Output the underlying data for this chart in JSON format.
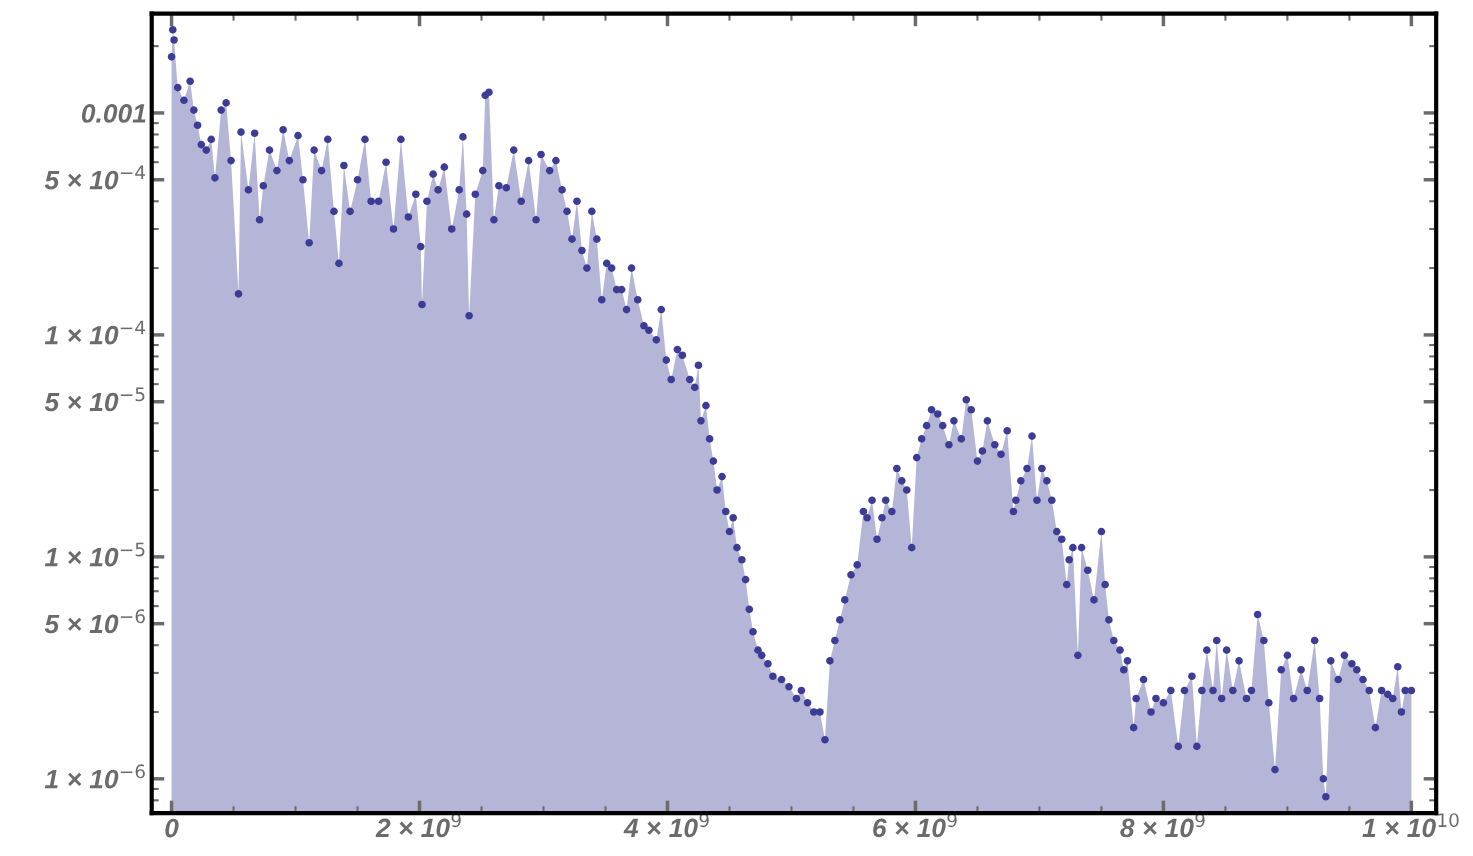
{
  "chart_data": {
    "type": "area",
    "marker": "circle",
    "log": "y",
    "xlim": [
      -160000000.0,
      10200000000.0
    ],
    "ylim": [
      7e-07,
      0.0028
    ],
    "xticks": [
      {
        "value": 0,
        "label": "0"
      },
      {
        "value": 2000000000.0,
        "label": "2 × 10$^{9}$"
      },
      {
        "value": 4000000000.0,
        "label": "4 × 10$^{9}$"
      },
      {
        "value": 6000000000.0,
        "label": "6 × 10$^{9}$"
      },
      {
        "value": 8000000000.0,
        "label": "8 × 10$^{9}$"
      },
      {
        "value": 10000000000.0,
        "label": "1 × 10$^{10}$"
      }
    ],
    "yticks": [
      {
        "value": 1e-06,
        "label": "1 × 10$^{−6}$"
      },
      {
        "value": 5e-06,
        "label": "5 × 10$^{−6}$"
      },
      {
        "value": 1e-05,
        "label": "1 × 10$^{−5}$"
      },
      {
        "value": 5e-05,
        "label": "5 × 10$^{−5}$"
      },
      {
        "value": 0.0001,
        "label": "1 × 10$^{−4}$"
      },
      {
        "value": 0.0005,
        "label": "5 × 10$^{−4}$"
      },
      {
        "value": 0.001,
        "label": "0.001"
      }
    ],
    "series": [
      {
        "color": "#3c3c96",
        "x": [
          0,
          10000000.0,
          20000000.0,
          50000000.0,
          100000000.0,
          150000000.0,
          180000000.0,
          210000000.0,
          240000000.0,
          280000000.0,
          320000000.0,
          350000000.0,
          400000000.0,
          440000000.0,
          480000000.0,
          540000000.0,
          560000000.0,
          620000000.0,
          670000000.0,
          710000000.0,
          740000000.0,
          790000000.0,
          850000000.0,
          900000000.0,
          950000000.0,
          1020000000.0,
          1060000000.0,
          1110000000.0,
          1150000000.0,
          1210000000.0,
          1260000000.0,
          1310000000.0,
          1350000000.0,
          1390000000.0,
          1440000000.0,
          1500000000.0,
          1560000000.0,
          1610000000.0,
          1670000000.0,
          1730000000.0,
          1790000000.0,
          1850000000.0,
          1910000000.0,
          1970000000.0,
          2010000000.0,
          2020000000.0,
          2060000000.0,
          2110000000.0,
          2150000000.0,
          2200000000.0,
          2260000000.0,
          2320000000.0,
          2350000000.0,
          2380000000.0,
          2400000000.0,
          2450000000.0,
          2510000000.0,
          2530000000.0,
          2560000000.0,
          2600000000.0,
          2640000000.0,
          2700000000.0,
          2760000000.0,
          2820000000.0,
          2880000000.0,
          2940000000.0,
          2980000000.0,
          3050000000.0,
          3100000000.0,
          3150000000.0,
          3190000000.0,
          3230000000.0,
          3270000000.0,
          3310000000.0,
          3350000000.0,
          3390000000.0,
          3430000000.0,
          3470000000.0,
          3510000000.0,
          3550000000.0,
          3590000000.0,
          3630000000.0,
          3670000000.0,
          3710000000.0,
          3760000000.0,
          3810000000.0,
          3850000000.0,
          3910000000.0,
          3950000000.0,
          3990000000.0,
          4030000000.0,
          4080000000.0,
          4120000000.0,
          4180000000.0,
          4220000000.0,
          4250000000.0,
          4270000000.0,
          4310000000.0,
          4340000000.0,
          4370000000.0,
          4400000000.0,
          4440000000.0,
          4470000000.0,
          4500000000.0,
          4530000000.0,
          4560000000.0,
          4600000000.0,
          4630000000.0,
          4660000000.0,
          4690000000.0,
          4730000000.0,
          4760000000.0,
          4810000000.0,
          4850000000.0,
          4920000000.0,
          4980000000.0,
          5040000000.0,
          5080000000.0,
          5130000000.0,
          5180000000.0,
          5230000000.0,
          5270000000.0,
          5310000000.0,
          5350000000.0,
          5390000000.0,
          5430000000.0,
          5480000000.0,
          5530000000.0,
          5580000000.0,
          5610000000.0,
          5650000000.0,
          5690000000.0,
          5730000000.0,
          5760000000.0,
          5810000000.0,
          5850000000.0,
          5890000000.0,
          5930000000.0,
          5970000000.0,
          6010000000.0,
          6050000000.0,
          6090000000.0,
          6130000000.0,
          6180000000.0,
          6220000000.0,
          6270000000.0,
          6310000000.0,
          6370000000.0,
          6410000000.0,
          6450000000.0,
          6500000000.0,
          6540000000.0,
          6580000000.0,
          6640000000.0,
          6690000000.0,
          6740000000.0,
          6790000000.0,
          6810000000.0,
          6850000000.0,
          6900000000.0,
          6940000000.0,
          6980000000.0,
          7020000000.0,
          7060000000.0,
          7100000000.0,
          7140000000.0,
          7180000000.0,
          7220000000.0,
          7240000000.0,
          7270000000.0,
          7310000000.0,
          7340000000.0,
          7390000000.0,
          7440000000.0,
          7500000000.0,
          7530000000.0,
          7560000000.0,
          7600000000.0,
          7650000000.0,
          7680000000.0,
          7710000000.0,
          7760000000.0,
          7780000000.0,
          7840000000.0,
          7900000000.0,
          7940000000.0,
          8000000000.0,
          8060000000.0,
          8120000000.0,
          8170000000.0,
          8230000000.0,
          8270000000.0,
          8310000000.0,
          8350000000.0,
          8400000000.0,
          8430000000.0,
          8470000000.0,
          8510000000.0,
          8560000000.0,
          8610000000.0,
          8670000000.0,
          8710000000.0,
          8760000000.0,
          8810000000.0,
          8850000000.0,
          8900000000.0,
          8950000000.0,
          9000000000.0,
          9050000000.0,
          9110000000.0,
          9160000000.0,
          9220000000.0,
          9260000000.0,
          9290000000.0,
          9310000000.0,
          9350000000.0,
          9410000000.0,
          9460000000.0,
          9520000000.0,
          9560000000.0,
          9610000000.0,
          9660000000.0,
          9710000000.0,
          9760000000.0,
          9810000000.0,
          9850000000.0,
          9890000000.0,
          9920000000.0,
          9950000000.0,
          10000000000.0
        ],
        "values": [
          0.00179,
          0.00237,
          0.00213,
          0.0013,
          0.00114,
          0.00139,
          0.00103,
          0.00088,
          0.00072,
          0.00068,
          0.00076,
          0.00051,
          0.00103,
          0.00111,
          0.00061,
          0.000153,
          0.00082,
          0.00045,
          0.00081,
          0.00033,
          0.00047,
          0.00068,
          0.00055,
          0.00084,
          0.00061,
          0.00079,
          0.0005,
          0.00026,
          0.00068,
          0.00055,
          0.00076,
          0.00036,
          0.00021,
          0.00058,
          0.00036,
          0.0005,
          0.00076,
          0.0004,
          0.0004,
          0.0006,
          0.0003,
          0.00076,
          0.00034,
          0.00043,
          0.00025,
          0.000137,
          0.0004,
          0.00053,
          0.00045,
          0.00057,
          0.0003,
          0.00045,
          0.00078,
          0.00035,
          0.000122,
          0.00043,
          0.00055,
          0.0012,
          0.00124,
          0.00033,
          0.00047,
          0.00046,
          0.00068,
          0.0004,
          0.00061,
          0.00033,
          0.00065,
          0.00055,
          0.00061,
          0.00045,
          0.00036,
          0.00027,
          0.0004,
          0.00024,
          0.0002,
          0.00036,
          0.00027,
          0.000144,
          0.00021,
          0.0002,
          0.00016,
          0.00016,
          0.00013,
          0.0002,
          0.000144,
          0.00011,
          0.000105,
          9.5e-05,
          0.00013,
          7.7e-05,
          6.3e-05,
          8.6e-05,
          8.1e-05,
          6.3e-05,
          5.8e-05,
          7.3e-05,
          4.1e-05,
          4.8e-05,
          3.4e-05,
          2.7e-05,
          2e-05,
          2.3e-05,
          1.6e-05,
          1.3e-05,
          1.5e-05,
          1.1e-05,
          9.7e-06,
          7.9e-06,
          5.8e-06,
          4.6e-06,
          3.8e-06,
          3.6e-06,
          3.3e-06,
          2.9e-06,
          2.8e-06,
          2.6e-06,
          2.3e-06,
          2.5e-06,
          2.2e-06,
          2e-06,
          2e-06,
          1.5e-06,
          3.4e-06,
          4.2e-06,
          5.2e-06,
          6.4e-06,
          8.3e-06,
          9.2e-06,
          1.6e-05,
          1.5e-05,
          1.8e-05,
          1.2e-05,
          1.5e-05,
          1.8e-05,
          1.6e-05,
          2.5e-05,
          2.2e-05,
          2e-05,
          1.1e-05,
          2.8e-05,
          3.4e-05,
          3.9e-05,
          4.6e-05,
          4.4e-05,
          3.9e-05,
          3.2e-05,
          4.1e-05,
          3.4e-05,
          5.1e-05,
          4.6e-05,
          2.7e-05,
          3e-05,
          4.1e-05,
          3.2e-05,
          2.9e-05,
          3.7e-05,
          1.6e-05,
          1.8e-05,
          2.2e-05,
          2.5e-05,
          3.5e-05,
          1.8e-05,
          2.5e-05,
          2.2e-05,
          1.8e-05,
          1.3e-05,
          1.2e-05,
          7.5e-06,
          9.7e-06,
          1.1e-05,
          3.6e-06,
          1.1e-05,
          8.7e-06,
          6.4e-06,
          1.3e-05,
          7.5e-06,
          5.2e-06,
          4.2e-06,
          3.8e-06,
          3.1e-06,
          3.4e-06,
          1.7e-06,
          2.3e-06,
          2.8e-06,
          2e-06,
          2.3e-06,
          2.2e-06,
          2.5e-06,
          1.4e-06,
          2.5e-06,
          2.9e-06,
          1.4e-06,
          2.5e-06,
          3.8e-06,
          2.5e-06,
          4.2e-06,
          2.3e-06,
          3.8e-06,
          2.5e-06,
          3.4e-06,
          2.3e-06,
          2.5e-06,
          5.5e-06,
          4.2e-06,
          2.2e-06,
          1.1e-06,
          3.1e-06,
          3.6e-06,
          2.3e-06,
          3.1e-06,
          2.5e-06,
          4.2e-06,
          2.3e-06,
          1e-06,
          8.3e-07,
          3.4e-06,
          2.8e-06,
          3.6e-06,
          3.3e-06,
          3.1e-06,
          2.8e-06,
          2.5e-06,
          1.7e-06,
          2.5e-06,
          2.4e-06,
          2.3e-06,
          3.2e-06,
          2e-06,
          2.5e-06,
          2.5e-06
        ]
      }
    ]
  }
}
